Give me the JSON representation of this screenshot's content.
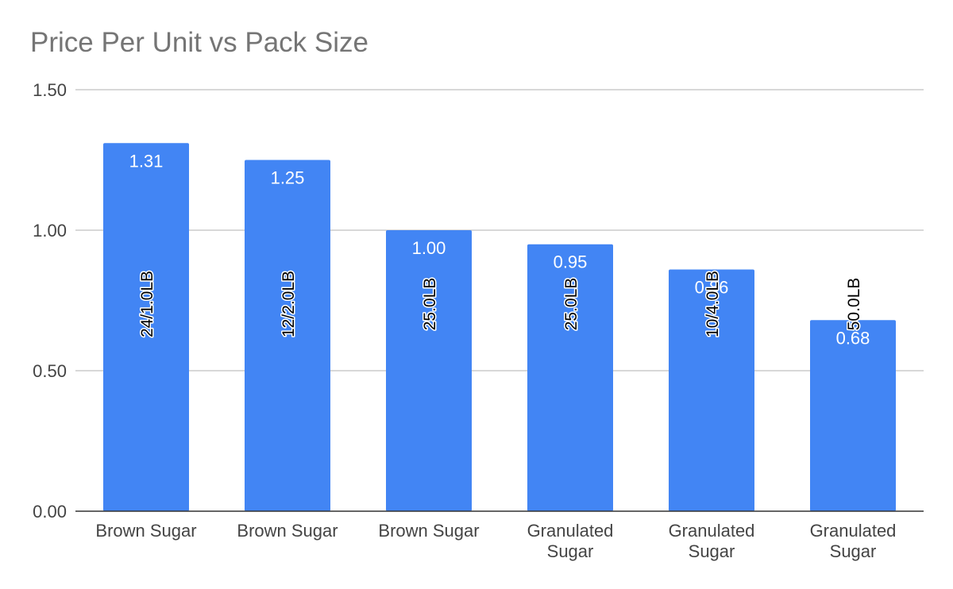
{
  "chart_data": {
    "type": "bar",
    "title": "Price Per Unit vs Pack Size",
    "xlabel": "",
    "ylabel": "",
    "ylim": [
      0,
      1.5
    ],
    "yticks": [
      "0.00",
      "0.50",
      "1.00",
      "1.50"
    ],
    "ytick_values": [
      0,
      0.5,
      1.0,
      1.5
    ],
    "grid": true,
    "legend": "none",
    "categories": [
      [
        "Brown Sugar"
      ],
      [
        "Brown Sugar"
      ],
      [
        "Brown Sugar"
      ],
      [
        "Granulated",
        "Sugar"
      ],
      [
        "Granulated",
        "Sugar"
      ],
      [
        "Granulated",
        "Sugar"
      ]
    ],
    "values": [
      1.31,
      1.25,
      1.0,
      0.95,
      0.86,
      0.68
    ],
    "value_labels": [
      "1.31",
      "1.25",
      "1.00",
      "0.95",
      "0.86",
      "0.68"
    ],
    "pack_sizes": [
      "24/1.0LB",
      "12/2.0LB",
      "25.0LB",
      "25.0LB",
      "10/4.0LB",
      "50.0LB"
    ],
    "bar_color": "#4285f4",
    "grid_color": "#cccccc",
    "axis_color": "#333333"
  }
}
